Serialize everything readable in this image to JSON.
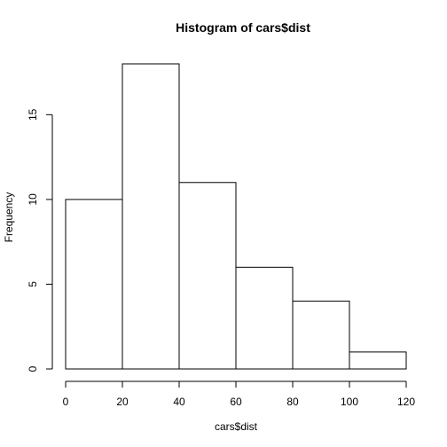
{
  "chart_data": {
    "type": "bar",
    "title": "Histogram of cars$dist",
    "xlabel": "cars$dist",
    "ylabel": "Frequency",
    "bins": [
      {
        "start": 0,
        "end": 20,
        "count": 10
      },
      {
        "start": 20,
        "end": 40,
        "count": 18
      },
      {
        "start": 40,
        "end": 60,
        "count": 11
      },
      {
        "start": 60,
        "end": 80,
        "count": 6
      },
      {
        "start": 80,
        "end": 100,
        "count": 4
      },
      {
        "start": 100,
        "end": 120,
        "count": 1
      }
    ],
    "xlim": [
      0,
      120
    ],
    "ylim": [
      0,
      18
    ],
    "x_ticks": [
      0,
      20,
      40,
      60,
      80,
      100,
      120
    ],
    "y_ticks": [
      0,
      5,
      10,
      15
    ],
    "grid": false,
    "legend": "none"
  }
}
